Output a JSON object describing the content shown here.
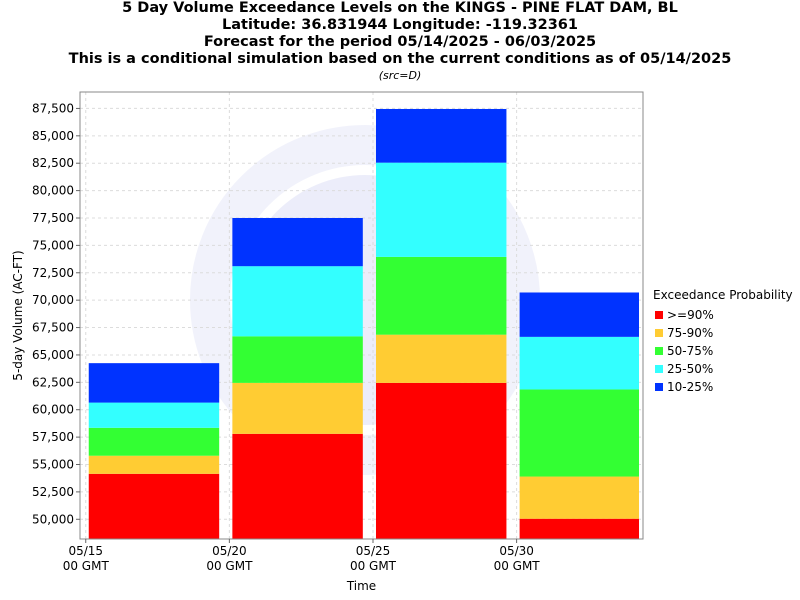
{
  "titles": {
    "line1": "5 Day Volume Exceedance Levels on the KINGS - PINE FLAT DAM, BL",
    "line2": "Latitude: 36.831944 Longitude: -119.32361",
    "line3": "Forecast for the period 05/14/2025 - 06/03/2025",
    "line4": "This is a conditional simulation based on the current conditions as of 05/14/2025",
    "src": "(src=D)"
  },
  "chart_data": {
    "type": "bar",
    "stacked": true,
    "xlabel": "Time",
    "ylabel": "5-day Volume (AC-FT)",
    "ylim": [
      48200,
      89000
    ],
    "yticks": [
      50000,
      52500,
      55000,
      57500,
      60000,
      62500,
      65000,
      67500,
      70000,
      72500,
      75000,
      77500,
      80000,
      82500,
      85000,
      87500
    ],
    "yticklabels": [
      "50,000",
      "52,500",
      "55,000",
      "57,500",
      "60,000",
      "62,500",
      "65,000",
      "67,500",
      "70,000",
      "72,500",
      "75,000",
      "77,500",
      "80,000",
      "82,500",
      "85,000",
      "87,500"
    ],
    "x_ticks": [
      {
        "day": 0,
        "line1": "05/15",
        "line2": "00 GMT"
      },
      {
        "day": 5,
        "line1": "05/20",
        "line2": "00 GMT"
      },
      {
        "day": 10,
        "line1": "05/25",
        "line2": "00 GMT"
      },
      {
        "day": 15,
        "line1": "05/30",
        "line2": "00 GMT"
      }
    ],
    "x_range_days": [
      -0.2,
      19.4
    ],
    "bars": [
      {
        "start_day": 0,
        "end_day": 4.75,
        "tops": [
          54150,
          55800,
          58350,
          60650,
          64250
        ]
      },
      {
        "start_day": 5,
        "end_day": 9.75,
        "tops": [
          57800,
          62450,
          66700,
          73100,
          77500
        ]
      },
      {
        "start_day": 10,
        "end_day": 14.75,
        "tops": [
          62450,
          66850,
          73950,
          82550,
          87450
        ]
      },
      {
        "start_day": 15,
        "end_day": 19.75,
        "tops": [
          50050,
          53900,
          61850,
          66650,
          70700
        ]
      }
    ],
    "series": [
      {
        "name": ">=90%",
        "color": "#ff0000"
      },
      {
        "name": "75-90%",
        "color": "#ffcc33"
      },
      {
        "name": "50-75%",
        "color": "#33ff33"
      },
      {
        "name": "25-50%",
        "color": "#33ffff"
      },
      {
        "name": "10-25%",
        "color": "#0033ff"
      }
    ],
    "legend_title": "Exceedance Probability",
    "legend_position": "right",
    "grid": true
  }
}
